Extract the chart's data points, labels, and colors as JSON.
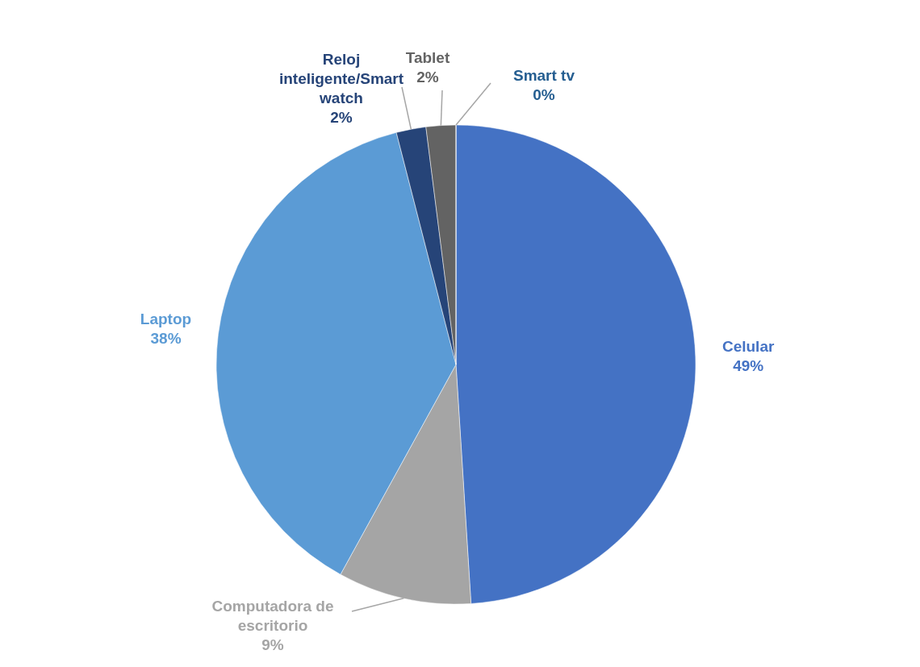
{
  "chart_data": {
    "type": "pie",
    "categories": [
      "Celular",
      "Computadora de escritorio",
      "Laptop",
      "Reloj inteligente/Smart watch",
      "Tablet",
      "Smart tv"
    ],
    "values": [
      49,
      9,
      38,
      2,
      2,
      0
    ],
    "colors": [
      "#4472c4",
      "#a5a5a5",
      "#5b9bd5",
      "#264478",
      "#636363",
      "#255e91"
    ],
    "value_labels": [
      "49%",
      "9%",
      "38%",
      "2%",
      "2%",
      "0%"
    ]
  }
}
